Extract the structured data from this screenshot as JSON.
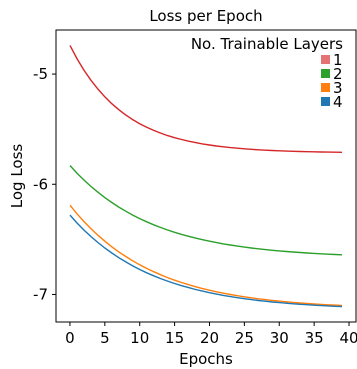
{
  "chart_data": {
    "type": "line",
    "title": "Loss per Epoch",
    "xlabel": "Epochs",
    "ylabel": "Log Loss",
    "xlim": [
      -2,
      41
    ],
    "ylim": [
      -7.25,
      -4.6
    ],
    "xticks": [
      0,
      5,
      10,
      15,
      20,
      25,
      30,
      35,
      40
    ],
    "yticks": [
      -7,
      -6,
      -5
    ],
    "ytick_labels": [
      "-7",
      "-6",
      "-5"
    ],
    "grid": false,
    "legend": {
      "title": "No. Trainable Layers",
      "placement": "top-right"
    },
    "series": [
      {
        "name": "1",
        "color": "#d62728",
        "swatch": "#e57373",
        "start": -4.74,
        "end": -5.71,
        "k": 0.13
      },
      {
        "name": "2",
        "color": "#2ca02c",
        "swatch": "#2ca02c",
        "start": -5.83,
        "end": -6.64,
        "k": 0.085
      },
      {
        "name": "3",
        "color": "#ff7f0e",
        "swatch": "#ff7f0e",
        "start": -6.19,
        "end": -7.1,
        "k": 0.085
      },
      {
        "name": "4",
        "color": "#1f77b4",
        "swatch": "#1f77b4",
        "start": -6.28,
        "end": -7.11,
        "k": 0.085
      }
    ]
  }
}
